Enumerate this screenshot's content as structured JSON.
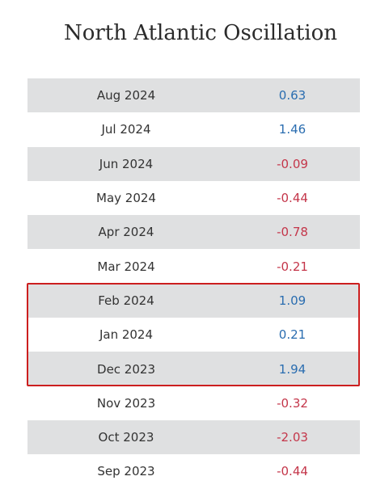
{
  "title": "North Atlantic Oscillation",
  "rows": [
    {
      "date": "Aug 2024",
      "value": "0.63",
      "sign": "pos"
    },
    {
      "date": "Jul 2024",
      "value": "1.46",
      "sign": "pos"
    },
    {
      "date": "Jun 2024",
      "value": "-0.09",
      "sign": "neg"
    },
    {
      "date": "May 2024",
      "value": "-0.44",
      "sign": "neg"
    },
    {
      "date": "Apr 2024",
      "value": "-0.78",
      "sign": "neg"
    },
    {
      "date": "Mar 2024",
      "value": "-0.21",
      "sign": "neg"
    },
    {
      "date": "Feb 2024",
      "value": "1.09",
      "sign": "pos"
    },
    {
      "date": "Jan 2024",
      "value": "0.21",
      "sign": "pos"
    },
    {
      "date": "Dec 2023",
      "value": "1.94",
      "sign": "pos"
    },
    {
      "date": "Nov 2023",
      "value": "-0.32",
      "sign": "neg"
    },
    {
      "date": "Oct 2023",
      "value": "-2.03",
      "sign": "neg"
    },
    {
      "date": "Sep 2023",
      "value": "-0.44",
      "sign": "neg"
    }
  ],
  "colors": {
    "positive": "#2a6db0",
    "negative": "#c4364a",
    "highlight_border": "#cc1f1f",
    "row_shade": "#dfe0e1"
  },
  "highlighted_rows": [
    "Feb 2024",
    "Jan 2024",
    "Dec 2023"
  ]
}
